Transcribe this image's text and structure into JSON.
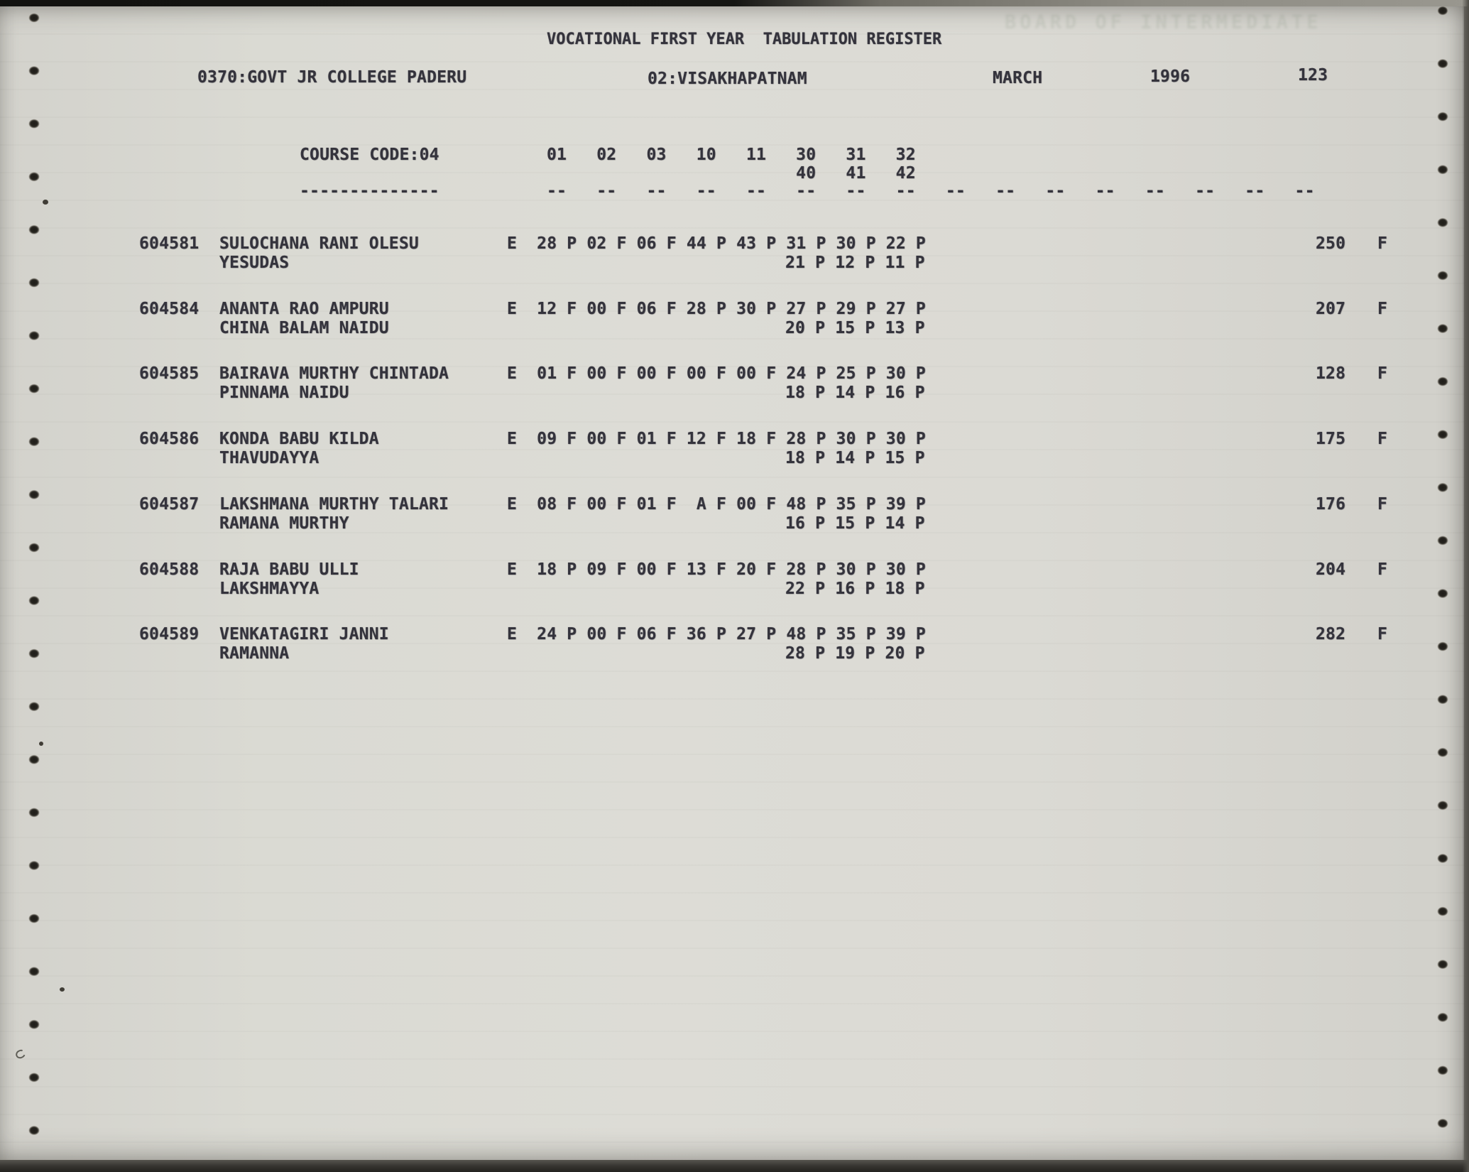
{
  "colors": {
    "paper": "#d8d7d1",
    "ink": "#34333c",
    "scan_bg": "#6e6c66"
  },
  "header": {
    "title": "VOCATIONAL FIRST YEAR  TABULATION REGISTER",
    "college": "0370:GOVT JR COLLEGE PADERU",
    "district": "02:VISAKHAPATNAM",
    "month": "MARCH",
    "year": "1996",
    "page_number": "123",
    "bleed_through_text": "BOARD OF INTERMEDIATE"
  },
  "table": {
    "course_code_label": "COURSE CODE:04",
    "course_code_underline": "--------------",
    "subject_columns_line1": "01   02   03   10   11   30   31   32",
    "subject_columns_line2": "                         40   41   42",
    "ruler_line": "--   --   --   --   --   --   --   --   --   --   --   --   --   --   --   --",
    "rows": [
      {
        "roll": "604581",
        "name": "SULOCHANA RANI OLESU",
        "father": "YESUDAS",
        "marks1": "E  28 P 02 F 06 F 44 P 43 P 31 P 30 P 22 P",
        "marks2": "21 P 12 P 11 P",
        "total": "250",
        "result": "F"
      },
      {
        "roll": "604584",
        "name": "ANANTA RAO AMPURU",
        "father": "CHINA BALAM NAIDU",
        "marks1": "E  12 F 00 F 06 F 28 P 30 P 27 P 29 P 27 P",
        "marks2": "20 P 15 P 13 P",
        "total": "207",
        "result": "F"
      },
      {
        "roll": "604585",
        "name": "BAIRAVA MURTHY CHINTADA",
        "father": "PINNAMA NAIDU",
        "marks1": "E  01 F 00 F 00 F 00 F 00 F 24 P 25 P 30 P",
        "marks2": "18 P 14 P 16 P",
        "total": "128",
        "result": "F"
      },
      {
        "roll": "604586",
        "name": "KONDA BABU KILDA",
        "father": "THAVUDAYYA",
        "marks1": "E  09 F 00 F 01 F 12 F 18 F 28 P 30 P 30 P",
        "marks2": "18 P 14 P 15 P",
        "total": "175",
        "result": "F"
      },
      {
        "roll": "604587",
        "name": "LAKSHMANA MURTHY TALARI",
        "father": "RAMANA MURTHY",
        "marks1": "E  08 F 00 F 01 F  A F 00 F 48 P 35 P 39 P",
        "marks2": "16 P 15 P 14 P",
        "total": "176",
        "result": "F"
      },
      {
        "roll": "604588",
        "name": "RAJA BABU ULLI",
        "father": "LAKSHMAYYA",
        "marks1": "E  18 P 09 F 00 F 13 F 20 F 28 P 30 P 30 P",
        "marks2": "22 P 16 P 18 P",
        "total": "204",
        "result": "F"
      },
      {
        "roll": "604589",
        "name": "VENKATAGIRI JANNI",
        "father": "RAMANNA",
        "marks1": "E  24 P 00 F 06 F 36 P 27 P 48 P 35 P 39 P",
        "marks2": "28 P 19 P 20 P",
        "total": "282",
        "result": "F"
      }
    ]
  }
}
